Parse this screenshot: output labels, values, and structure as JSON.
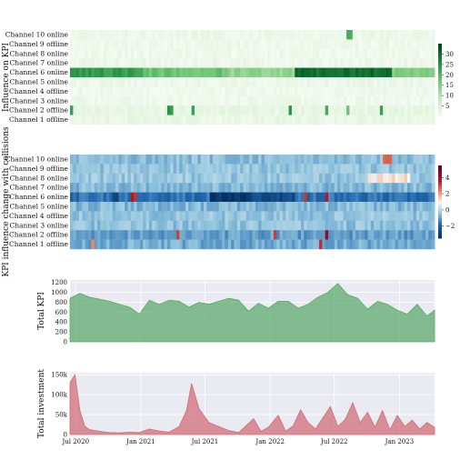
{
  "chart_data": [
    {
      "type": "heatmap",
      "ylabel": "Influence on KPI",
      "rows": [
        "Channel 10 online",
        "Channel 9 offline",
        "Channel 8 online",
        "Channel 7 online",
        "Channel 6 online",
        "Channel 5 online",
        "Channel 4 offline",
        "Channel 3 online",
        "Channel 2 offline",
        "Channel 1 offline"
      ],
      "colormap": "Greens",
      "colorbar": {
        "range": [
          0,
          35
        ],
        "ticks": [
          5,
          10,
          15,
          20,
          25,
          30
        ]
      },
      "row_levels": [
        2,
        1.5,
        1.5,
        2,
        17,
        2,
        1.5,
        1.5,
        3,
        2.5
      ],
      "highlights": [
        {
          "row": 0,
          "t": [
            0.755,
            0.775
          ],
          "v": 20
        },
        {
          "row": 4,
          "t": [
            0.0,
            0.2
          ],
          "v": 24
        },
        {
          "row": 4,
          "t": [
            0.2,
            0.43
          ],
          "v": 18
        },
        {
          "row": 4,
          "t": [
            0.43,
            0.62
          ],
          "v": 14
        },
        {
          "row": 4,
          "t": [
            0.62,
            0.88
          ],
          "v": 30
        },
        {
          "row": 4,
          "t": [
            0.88,
            1.0
          ],
          "v": 16
        },
        {
          "row": 8,
          "t": [
            0.0,
            0.01
          ],
          "v": 22
        },
        {
          "row": 8,
          "t": [
            0.27,
            0.28
          ],
          "v": 24
        },
        {
          "row": 8,
          "t": [
            0.33,
            0.34
          ],
          "v": 22
        },
        {
          "row": 8,
          "t": [
            0.6,
            0.61
          ],
          "v": 26
        },
        {
          "row": 8,
          "t": [
            0.7,
            0.71
          ],
          "v": 22
        },
        {
          "row": 8,
          "t": [
            0.76,
            0.77
          ],
          "v": 20
        },
        {
          "row": 8,
          "t": [
            0.85,
            0.86
          ],
          "v": 24
        }
      ]
    },
    {
      "type": "heatmap",
      "ylabel": "KPI influence change with collisions",
      "rows": [
        "Channel 10 online",
        "Channel 9 offline",
        "Channel 8 online",
        "Channel 7 online",
        "Channel 6 online",
        "Channel 5 online",
        "Channel 4 offline",
        "Channel 3 online",
        "Channel 2 offline",
        "Channel 1 offline"
      ],
      "colormap": "RdBu",
      "colorbar": {
        "range": [
          -3.5,
          5.5
        ],
        "ticks": [
          -2,
          0,
          2,
          4
        ]
      },
      "row_levels": [
        -0.4,
        -0.3,
        -0.25,
        -0.5,
        -1.6,
        -0.5,
        -0.3,
        -0.35,
        -0.9,
        -0.7
      ],
      "highlights": [
        {
          "row": 0,
          "t": [
            0.86,
            0.88
          ],
          "v": 2.8
        },
        {
          "row": 2,
          "t": [
            0.82,
            0.93
          ],
          "v": 1.2
        },
        {
          "row": 4,
          "t": [
            0.38,
            0.5
          ],
          "v": -3.3
        },
        {
          "row": 4,
          "t": [
            0.5,
            0.62
          ],
          "v": -2.6
        },
        {
          "row": 4,
          "t": [
            0.12,
            0.13
          ],
          "v": -3.0
        },
        {
          "row": 4,
          "t": [
            0.17,
            0.18
          ],
          "v": 3.6
        },
        {
          "row": 4,
          "t": [
            0.64,
            0.65
          ],
          "v": 3.2
        },
        {
          "row": 4,
          "t": [
            0.7,
            0.71
          ],
          "v": 3.8
        },
        {
          "row": 8,
          "t": [
            0.29,
            0.3
          ],
          "v": 3.5
        },
        {
          "row": 8,
          "t": [
            0.56,
            0.57
          ],
          "v": 3.0
        },
        {
          "row": 8,
          "t": [
            0.7,
            0.71
          ],
          "v": 4.5
        },
        {
          "row": 9,
          "t": [
            0.06,
            0.07
          ],
          "v": 2.5
        },
        {
          "row": 9,
          "t": [
            0.68,
            0.69
          ],
          "v": 3.2
        }
      ]
    },
    {
      "type": "area",
      "ylabel": "Total KPI",
      "color": "#5aa86a",
      "ylim": [
        0,
        1250
      ],
      "yticks": [
        0,
        200,
        400,
        600,
        800,
        1000,
        1200
      ],
      "x": [
        "2020-06-15",
        "2020-07-13",
        "2020-08-10",
        "2020-09-07",
        "2020-10-05",
        "2020-11-02",
        "2020-11-30",
        "2020-12-28",
        "2021-01-25",
        "2021-02-22",
        "2021-03-22",
        "2021-04-19",
        "2021-05-17",
        "2021-06-14",
        "2021-07-12",
        "2021-08-09",
        "2021-09-06",
        "2021-10-04",
        "2021-11-01",
        "2021-11-29",
        "2021-12-27",
        "2022-01-24",
        "2022-02-21",
        "2022-03-21",
        "2022-04-18",
        "2022-05-16",
        "2022-06-13",
        "2022-07-11",
        "2022-08-08",
        "2022-09-05",
        "2022-10-03",
        "2022-10-31",
        "2022-11-28",
        "2022-12-26",
        "2023-01-23",
        "2023-02-20",
        "2023-03-20",
        "2023-04-10"
      ],
      "values": [
        880,
        980,
        900,
        860,
        820,
        760,
        700,
        560,
        840,
        760,
        840,
        820,
        700,
        800,
        760,
        820,
        880,
        840,
        620,
        780,
        680,
        820,
        820,
        680,
        760,
        900,
        1000,
        1180,
        950,
        880,
        660,
        820,
        760,
        640,
        560,
        760,
        520,
        640
      ]
    },
    {
      "type": "area",
      "ylabel": "Total investment",
      "color": "#d06b74",
      "ylim": [
        0,
        155000
      ],
      "yticks": [
        0,
        50000,
        100000,
        150000
      ],
      "ytick_labels": [
        "0",
        "50k",
        "100k",
        "150k"
      ],
      "xtick_labels": [
        "Jul 2020",
        "Jan 2021",
        "Jul 2021",
        "Jan 2022",
        "Jul 2022",
        "Jan 2023"
      ],
      "x": [
        "2020-06-15",
        "2020-06-29",
        "2020-07-13",
        "2020-07-27",
        "2020-08-10",
        "2020-09-07",
        "2020-10-05",
        "2020-11-02",
        "2020-11-30",
        "2020-12-28",
        "2021-01-25",
        "2021-02-22",
        "2021-03-22",
        "2021-04-19",
        "2021-05-10",
        "2021-05-24",
        "2021-06-14",
        "2021-07-12",
        "2021-08-09",
        "2021-09-06",
        "2021-10-04",
        "2021-10-25",
        "2021-11-15",
        "2021-12-06",
        "2021-12-27",
        "2022-01-24",
        "2022-02-14",
        "2022-03-07",
        "2022-03-28",
        "2022-04-18",
        "2022-05-09",
        "2022-05-30",
        "2022-06-20",
        "2022-07-11",
        "2022-08-01",
        "2022-08-22",
        "2022-09-12",
        "2022-10-03",
        "2022-10-24",
        "2022-11-14",
        "2022-12-05",
        "2022-12-26",
        "2023-01-16",
        "2023-02-06",
        "2023-02-27",
        "2023-03-20",
        "2023-04-10"
      ],
      "values": [
        130000,
        150000,
        60000,
        20000,
        12000,
        8000,
        5000,
        4000,
        6000,
        5000,
        14000,
        9000,
        6000,
        20000,
        60000,
        128000,
        65000,
        30000,
        20000,
        10000,
        5000,
        22000,
        40000,
        8000,
        18000,
        48000,
        8000,
        22000,
        62000,
        30000,
        14000,
        42000,
        70000,
        20000,
        38000,
        80000,
        30000,
        56000,
        18000,
        60000,
        12000,
        48000,
        20000,
        36000,
        14000,
        30000,
        18000
      ]
    }
  ]
}
